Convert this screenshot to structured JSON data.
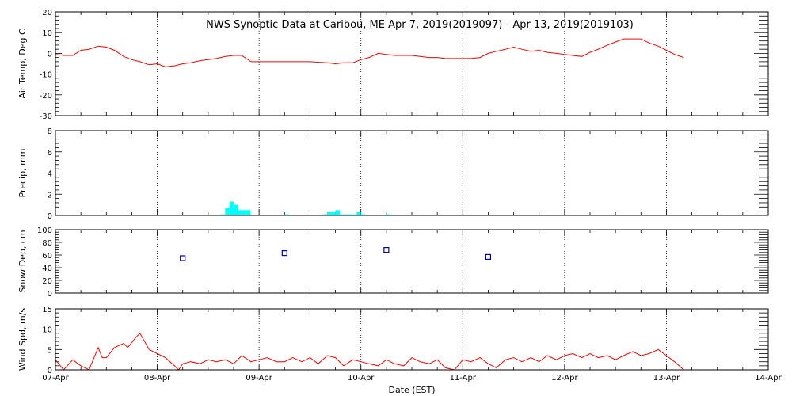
{
  "chart_data": {
    "type": "multi-panel time series",
    "title": "NWS Synoptic Data at Caribou, ME   Apr  7, 2019(2019097) - Apr 13, 2019(2019103)",
    "xlabel": "Date (EST)",
    "x_tick_labels": [
      "07-Apr",
      "08-Apr",
      "09-Apr",
      "10-Apr",
      "11-Apr",
      "12-Apr",
      "13-Apr",
      "14-Apr"
    ],
    "xlim_days": [
      0,
      7
    ],
    "grid": true,
    "colors": {
      "temp": "#ff0000",
      "precip": "#00ffff",
      "snow": "#0000aa",
      "wind": "#ff0000"
    },
    "panels": [
      {
        "id": "air-temp",
        "type": "line",
        "ylabel": "Air Temp, Deg C",
        "ylim": [
          -30,
          20
        ],
        "y_ticks": [
          -30,
          -20,
          -10,
          0,
          10,
          20
        ],
        "series": [
          {
            "points": [
              [
                0.0,
                -0.5
              ],
              [
                0.08,
                -1.0
              ],
              [
                0.17,
                -1.0
              ],
              [
                0.25,
                1.5
              ],
              [
                0.33,
                2.0
              ],
              [
                0.42,
                3.5
              ],
              [
                0.5,
                3.0
              ],
              [
                0.58,
                1.5
              ],
              [
                0.67,
                -1.5
              ],
              [
                0.75,
                -3.0
              ],
              [
                0.83,
                -4.0
              ],
              [
                0.92,
                -5.5
              ],
              [
                1.0,
                -5.0
              ],
              [
                1.08,
                -6.5
              ],
              [
                1.17,
                -6.0
              ],
              [
                1.25,
                -5.0
              ],
              [
                1.33,
                -4.5
              ],
              [
                1.42,
                -3.5
              ],
              [
                1.5,
                -3.0
              ],
              [
                1.58,
                -2.5
              ],
              [
                1.67,
                -1.5
              ],
              [
                1.75,
                -1.0
              ],
              [
                1.83,
                -1.0
              ],
              [
                1.92,
                -4.0
              ],
              [
                2.0,
                -4.0
              ],
              [
                2.17,
                -4.0
              ],
              [
                2.33,
                -4.0
              ],
              [
                2.5,
                -4.0
              ],
              [
                2.67,
                -4.5
              ],
              [
                2.75,
                -5.0
              ],
              [
                2.83,
                -4.5
              ],
              [
                2.92,
                -4.5
              ],
              [
                3.0,
                -3.0
              ],
              [
                3.08,
                -2.0
              ],
              [
                3.17,
                0.0
              ],
              [
                3.25,
                -0.5
              ],
              [
                3.33,
                -1.0
              ],
              [
                3.42,
                -1.0
              ],
              [
                3.5,
                -1.0
              ],
              [
                3.58,
                -1.5
              ],
              [
                3.67,
                -2.0
              ],
              [
                3.75,
                -2.0
              ],
              [
                3.83,
                -2.5
              ],
              [
                3.92,
                -2.5
              ],
              [
                4.0,
                -2.5
              ],
              [
                4.08,
                -2.5
              ],
              [
                4.17,
                -2.0
              ],
              [
                4.25,
                0.0
              ],
              [
                4.33,
                1.0
              ],
              [
                4.42,
                2.0
              ],
              [
                4.5,
                3.0
              ],
              [
                4.58,
                2.0
              ],
              [
                4.67,
                1.0
              ],
              [
                4.75,
                1.5
              ],
              [
                4.83,
                0.5
              ],
              [
                4.92,
                0.0
              ],
              [
                5.0,
                -0.5
              ],
              [
                5.08,
                -1.0
              ],
              [
                5.17,
                -1.5
              ],
              [
                5.25,
                0.5
              ],
              [
                5.33,
                2.0
              ],
              [
                5.42,
                4.0
              ],
              [
                5.5,
                5.5
              ],
              [
                5.58,
                7.0
              ],
              [
                5.67,
                7.0
              ],
              [
                5.75,
                7.0
              ],
              [
                5.83,
                5.0
              ],
              [
                5.92,
                3.5
              ],
              [
                6.0,
                1.5
              ],
              [
                6.08,
                -0.5
              ],
              [
                6.17,
                -2.0
              ]
            ]
          }
        ]
      },
      {
        "id": "precip",
        "type": "bar",
        "ylabel": "Precip, mm",
        "ylim": [
          0,
          8
        ],
        "y_ticks": [
          0,
          2,
          4,
          6,
          8
        ],
        "bar_width_days": 0.0417,
        "bars": [
          [
            1.625,
            0.1
          ],
          [
            1.667,
            0.7
          ],
          [
            1.708,
            1.3
          ],
          [
            1.75,
            1.0
          ],
          [
            1.792,
            0.5
          ],
          [
            1.833,
            0.5
          ],
          [
            1.875,
            0.5
          ],
          [
            2.25,
            0.1
          ],
          [
            2.625,
            0.1
          ],
          [
            2.667,
            0.3
          ],
          [
            2.708,
            0.3
          ],
          [
            2.75,
            0.5
          ],
          [
            2.792,
            0.1
          ],
          [
            2.833,
            0.1
          ],
          [
            2.875,
            0.1
          ],
          [
            2.917,
            0.1
          ],
          [
            2.958,
            0.3
          ],
          [
            3.0,
            0.1
          ],
          [
            3.25,
            0.1
          ]
        ]
      },
      {
        "id": "snow-depth",
        "type": "scatter",
        "ylabel": "Snow Dep, cm",
        "ylim": [
          0,
          100
        ],
        "y_ticks": [
          0,
          20,
          40,
          60,
          80,
          100
        ],
        "points": [
          [
            1.25,
            55
          ],
          [
            2.25,
            63
          ],
          [
            3.25,
            68
          ],
          [
            4.25,
            57
          ]
        ]
      },
      {
        "id": "wind-speed",
        "type": "line",
        "ylabel": "Wind Spd, m/s",
        "ylim": [
          0,
          15
        ],
        "y_ticks": [
          0,
          5,
          10,
          15
        ],
        "series": [
          {
            "points": [
              [
                0.0,
                2.5
              ],
              [
                0.08,
                0.0
              ],
              [
                0.17,
                2.5
              ],
              [
                0.25,
                1.0
              ],
              [
                0.33,
                0.0
              ],
              [
                0.42,
                5.5
              ],
              [
                0.46,
                3.0
              ],
              [
                0.5,
                3.0
              ],
              [
                0.58,
                5.5
              ],
              [
                0.67,
                6.5
              ],
              [
                0.71,
                5.5
              ],
              [
                0.79,
                8.0
              ],
              [
                0.83,
                9.0
              ],
              [
                0.92,
                5.0
              ],
              [
                1.0,
                4.0
              ],
              [
                1.08,
                3.0
              ],
              [
                1.17,
                1.0
              ],
              [
                1.21,
                0.0
              ],
              [
                1.25,
                1.5
              ],
              [
                1.33,
                2.0
              ],
              [
                1.42,
                1.5
              ],
              [
                1.5,
                2.5
              ],
              [
                1.58,
                2.0
              ],
              [
                1.67,
                2.5
              ],
              [
                1.75,
                1.5
              ],
              [
                1.83,
                3.5
              ],
              [
                1.92,
                2.0
              ],
              [
                2.0,
                2.5
              ],
              [
                2.08,
                3.0
              ],
              [
                2.17,
                2.0
              ],
              [
                2.25,
                2.0
              ],
              [
                2.33,
                3.0
              ],
              [
                2.42,
                2.0
              ],
              [
                2.5,
                3.0
              ],
              [
                2.58,
                1.5
              ],
              [
                2.67,
                3.5
              ],
              [
                2.75,
                3.0
              ],
              [
                2.83,
                1.0
              ],
              [
                2.92,
                2.5
              ],
              [
                3.0,
                2.0
              ],
              [
                3.08,
                1.5
              ],
              [
                3.17,
                1.0
              ],
              [
                3.25,
                2.5
              ],
              [
                3.33,
                1.5
              ],
              [
                3.42,
                1.0
              ],
              [
                3.5,
                3.0
              ],
              [
                3.58,
                2.0
              ],
              [
                3.67,
                1.5
              ],
              [
                3.75,
                2.5
              ],
              [
                3.83,
                0.5
              ],
              [
                3.92,
                0.0
              ],
              [
                4.0,
                2.5
              ],
              [
                4.08,
                2.0
              ],
              [
                4.17,
                3.0
              ],
              [
                4.25,
                1.5
              ],
              [
                4.33,
                0.5
              ],
              [
                4.42,
                2.5
              ],
              [
                4.5,
                3.0
              ],
              [
                4.58,
                2.0
              ],
              [
                4.67,
                3.0
              ],
              [
                4.75,
                2.0
              ],
              [
                4.83,
                3.5
              ],
              [
                4.92,
                2.5
              ],
              [
                5.0,
                3.5
              ],
              [
                5.08,
                4.0
              ],
              [
                5.17,
                3.0
              ],
              [
                5.25,
                4.0
              ],
              [
                5.33,
                3.0
              ],
              [
                5.42,
                3.5
              ],
              [
                5.5,
                2.5
              ],
              [
                5.58,
                3.5
              ],
              [
                5.67,
                4.5
              ],
              [
                5.75,
                3.5
              ],
              [
                5.83,
                4.0
              ],
              [
                5.92,
                5.0
              ],
              [
                6.0,
                3.5
              ],
              [
                6.08,
                2.0
              ],
              [
                6.17,
                0.0
              ]
            ]
          }
        ]
      }
    ]
  }
}
